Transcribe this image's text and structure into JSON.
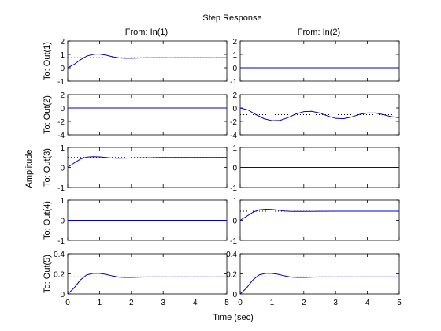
{
  "chart_data": {
    "type": "line",
    "title": "Step Response",
    "xlabel": "Time (sec)",
    "ylabel": "Amplitude",
    "xlim": [
      0,
      5
    ],
    "xticks": [
      0,
      1,
      2,
      3,
      4,
      5
    ],
    "grid": false,
    "colors": {
      "response": "#0000cc",
      "steady_state": "#000000",
      "axes": "#000000"
    },
    "columns": [
      "From: In(1)",
      "From: In(2)"
    ],
    "rows": [
      {
        "label": "To: Out(1)",
        "ylim": [
          -1,
          2
        ],
        "yticks": [
          -1,
          0,
          1,
          2
        ]
      },
      {
        "label": "To: Out(2)",
        "ylim": [
          -4,
          2
        ],
        "yticks": [
          -4,
          -2,
          0,
          2
        ]
      },
      {
        "label": "To: Out(3)",
        "ylim": [
          -1,
          1
        ],
        "yticks": [
          -1,
          0,
          1
        ]
      },
      {
        "label": "To: Out(4)",
        "ylim": [
          -1,
          1
        ],
        "yticks": [
          -1,
          0,
          1
        ]
      },
      {
        "label": "To: Out(5)",
        "ylim": [
          0,
          0.4
        ],
        "yticks": [
          0,
          0.2,
          0.4
        ]
      }
    ],
    "panels": [
      {
        "row": 0,
        "col": 0,
        "steady_state": 0.75,
        "x": [
          0,
          0.2,
          0.4,
          0.6,
          0.8,
          0.9,
          1.0,
          1.2,
          1.4,
          1.6,
          1.8,
          2.0,
          2.5,
          3.0,
          3.5,
          4.0,
          5.0
        ],
        "y": [
          0,
          0.25,
          0.6,
          0.88,
          1.0,
          1.03,
          1.02,
          0.95,
          0.83,
          0.74,
          0.71,
          0.71,
          0.75,
          0.75,
          0.75,
          0.75,
          0.75
        ]
      },
      {
        "row": 0,
        "col": 1,
        "steady_state": null,
        "x": [
          0,
          5
        ],
        "y": [
          0,
          0
        ]
      },
      {
        "row": 1,
        "col": 0,
        "steady_state": null,
        "x": [
          0,
          5
        ],
        "y": [
          0,
          0
        ]
      },
      {
        "row": 1,
        "col": 1,
        "steady_state": -1.0,
        "x": [
          0,
          0.25,
          0.5,
          0.75,
          1.0,
          1.25,
          1.5,
          1.75,
          2.0,
          2.25,
          2.5,
          2.75,
          3.0,
          3.25,
          3.5,
          3.75,
          4.0,
          4.25,
          4.5,
          4.75,
          5.0
        ],
        "y": [
          0,
          -0.3,
          -1.0,
          -1.6,
          -1.9,
          -1.85,
          -1.45,
          -0.9,
          -0.55,
          -0.5,
          -0.75,
          -1.2,
          -1.55,
          -1.6,
          -1.35,
          -0.95,
          -0.75,
          -0.75,
          -1.0,
          -1.3,
          -1.45
        ]
      },
      {
        "row": 2,
        "col": 0,
        "steady_state": 0.5,
        "x": [
          0,
          0.2,
          0.4,
          0.6,
          0.8,
          1.0,
          1.2,
          1.4,
          1.6,
          2.0,
          3.0,
          4.0,
          5.0
        ],
        "y": [
          0,
          0.22,
          0.42,
          0.52,
          0.54,
          0.53,
          0.5,
          0.47,
          0.46,
          0.47,
          0.5,
          0.5,
          0.5
        ]
      },
      {
        "row": 2,
        "col": 1,
        "steady_state": null,
        "x": [
          0,
          5
        ],
        "y": [
          0,
          0
        ]
      },
      {
        "row": 3,
        "col": 0,
        "steady_state": null,
        "x": [
          0,
          5
        ],
        "y": [
          0,
          0
        ]
      },
      {
        "row": 3,
        "col": 1,
        "steady_state": 0.45,
        "x": [
          0,
          0.2,
          0.4,
          0.6,
          0.8,
          1.0,
          1.2,
          1.4,
          1.6,
          2.0,
          3.0,
          4.0,
          5.0
        ],
        "y": [
          0,
          0.2,
          0.4,
          0.52,
          0.55,
          0.54,
          0.5,
          0.46,
          0.44,
          0.44,
          0.45,
          0.45,
          0.45
        ]
      },
      {
        "row": 4,
        "col": 0,
        "steady_state": 0.17,
        "x": [
          0,
          0.2,
          0.4,
          0.6,
          0.8,
          1.0,
          1.2,
          1.4,
          1.6,
          1.8,
          2.0,
          2.5,
          3.0,
          4.0,
          5.0
        ],
        "y": [
          0,
          0.06,
          0.14,
          0.19,
          0.205,
          0.205,
          0.195,
          0.18,
          0.168,
          0.165,
          0.165,
          0.17,
          0.17,
          0.17,
          0.17
        ]
      },
      {
        "row": 4,
        "col": 1,
        "steady_state": 0.17,
        "x": [
          0,
          0.2,
          0.4,
          0.6,
          0.8,
          1.0,
          1.2,
          1.4,
          1.6,
          1.8,
          2.0,
          2.5,
          3.0,
          4.0,
          5.0
        ],
        "y": [
          0,
          0.06,
          0.14,
          0.19,
          0.205,
          0.205,
          0.195,
          0.18,
          0.168,
          0.165,
          0.165,
          0.17,
          0.17,
          0.17,
          0.17
        ]
      }
    ]
  }
}
